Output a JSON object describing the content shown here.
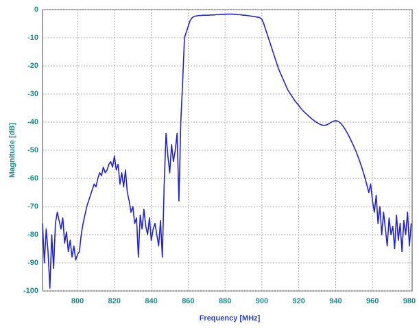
{
  "chart_data": {
    "type": "line",
    "x_label": "Frequency [MHz]",
    "y_label": "Magnitude [dB]",
    "color": "#2020e0",
    "xlim": [
      781,
      981.5
    ],
    "ylim": [
      -100,
      0
    ],
    "xticks": [
      800,
      820,
      840,
      860,
      880,
      900,
      920,
      940,
      960,
      980
    ],
    "yticks": [
      0,
      -10,
      -20,
      -30,
      -40,
      -50,
      -60,
      -70,
      -80,
      -90,
      -100
    ],
    "grid": true,
    "x": [
      781,
      782,
      783,
      784,
      785,
      786,
      787,
      788,
      789,
      790,
      791,
      792,
      793,
      794,
      795,
      796,
      797,
      798,
      799,
      800,
      801,
      802,
      803,
      804,
      805,
      806,
      807,
      808,
      809,
      810,
      811,
      812,
      813,
      814,
      815,
      816,
      817,
      818,
      819,
      820,
      821,
      822,
      823,
      824,
      825,
      826,
      827,
      828,
      829,
      830,
      831,
      832,
      833,
      834,
      835,
      836,
      837,
      838,
      839,
      840,
      841,
      842,
      843,
      844,
      845,
      846,
      847,
      848,
      849,
      850,
      851,
      852,
      853,
      854,
      855,
      856,
      857,
      858,
      859,
      860,
      861,
      862,
      863,
      864,
      865,
      866,
      867,
      868,
      869,
      870,
      871,
      872,
      873,
      874,
      875,
      876,
      877,
      878,
      879,
      880,
      881,
      882,
      883,
      884,
      885,
      886,
      887,
      888,
      889,
      890,
      891,
      892,
      893,
      894,
      895,
      896,
      897,
      898,
      899,
      900,
      901,
      902,
      903,
      904,
      905,
      906,
      907,
      908,
      909,
      910,
      911,
      912,
      913,
      914,
      915,
      916,
      917,
      918,
      919,
      920,
      921,
      922,
      923,
      924,
      925,
      926,
      927,
      928,
      929,
      930,
      931,
      932,
      933,
      934,
      935,
      936,
      937,
      938,
      939,
      940,
      941,
      942,
      943,
      944,
      945,
      946,
      947,
      948,
      949,
      950,
      951,
      952,
      953,
      954,
      955,
      956,
      957,
      958,
      959,
      960,
      961,
      962,
      963,
      964,
      965,
      966,
      967,
      968,
      969,
      970,
      971,
      972,
      973,
      974,
      975,
      976,
      977,
      978,
      979,
      980,
      981
    ],
    "values": [
      -76,
      -90,
      -78,
      -86,
      -99,
      -80,
      -92,
      -76,
      -72,
      -75,
      -78,
      -74,
      -83,
      -79,
      -86,
      -82,
      -88,
      -84,
      -89,
      -87,
      -86,
      -80,
      -76,
      -73,
      -70,
      -68,
      -66,
      -64,
      -62,
      -63,
      -60,
      -58,
      -59,
      -56,
      -58,
      -57,
      -55,
      -54,
      -56,
      -52,
      -57,
      -55,
      -62,
      -58,
      -63,
      -57,
      -65,
      -68,
      -72,
      -70,
      -76,
      -74,
      -88,
      -73,
      -78,
      -71,
      -77,
      -80,
      -74,
      -82,
      -78,
      -76,
      -80,
      -84,
      -75,
      -88,
      -62,
      -44,
      -52,
      -58,
      -48,
      -54,
      -50,
      -44,
      -68,
      -40,
      -26,
      -10,
      -8,
      -6,
      -4,
      -3,
      -2.5,
      -2.3,
      -2.2,
      -2.1,
      -2.1,
      -2,
      -2,
      -2,
      -2,
      -1.9,
      -1.9,
      -1.9,
      -1.8,
      -1.8,
      -1.8,
      -1.7,
      -1.7,
      -1.7,
      -1.6,
      -1.6,
      -1.6,
      -1.6,
      -1.7,
      -1.7,
      -1.8,
      -1.8,
      -1.9,
      -2,
      -2,
      -2.1,
      -2.2,
      -2.3,
      -2.4,
      -2.5,
      -2.6,
      -2.7,
      -2.9,
      -3.5,
      -5,
      -7,
      -9,
      -11,
      -13,
      -15,
      -17,
      -19,
      -21,
      -22.5,
      -24,
      -25.5,
      -27,
      -28.5,
      -29.5,
      -30.5,
      -31.5,
      -32.5,
      -33.3,
      -34,
      -35,
      -35.7,
      -36.4,
      -37,
      -37.6,
      -38.2,
      -38.8,
      -39.3,
      -39.8,
      -40.2,
      -40.6,
      -40.9,
      -41.1,
      -41.1,
      -41,
      -40.7,
      -40.3,
      -39.9,
      -39.6,
      -39.5,
      -39.6,
      -40,
      -40.6,
      -41.4,
      -42.4,
      -43.5,
      -44.7,
      -46,
      -47.4,
      -48.8,
      -50.3,
      -52,
      -53.8,
      -55.7,
      -57.8,
      -60,
      -62.5,
      -65,
      -62,
      -68,
      -72,
      -66,
      -76,
      -70,
      -80,
      -72,
      -78,
      -84,
      -74,
      -80,
      -77,
      -85,
      -73,
      -82,
      -76,
      -86,
      -75,
      -80,
      -72,
      -84,
      -76
    ]
  }
}
